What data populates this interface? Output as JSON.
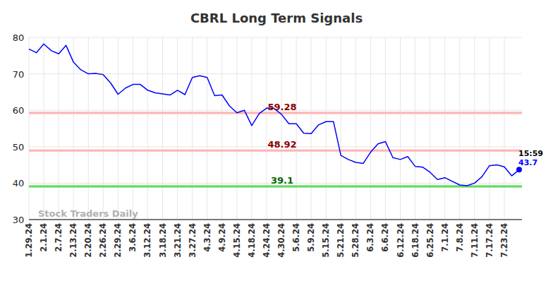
{
  "chart_data": {
    "type": "line",
    "title": "CBRL Long Term Signals",
    "categories": [
      "1.29.24",
      null,
      "2.1.24",
      null,
      "2.7.24",
      null,
      "2.13.24",
      null,
      "2.20.24",
      null,
      "2.26.24",
      null,
      "2.29.24",
      null,
      "3.6.24",
      null,
      "3.12.24",
      null,
      "3.18.24",
      null,
      "3.21.24",
      null,
      "3.27.24",
      null,
      "4.3.24",
      null,
      "4.9.24",
      null,
      "4.15.24",
      null,
      "4.18.24",
      null,
      "4.24.24",
      null,
      "4.30.24",
      null,
      "5.6.24",
      null,
      "5.9.24",
      null,
      "5.15.24",
      null,
      "5.21.24",
      null,
      "5.28.24",
      null,
      "6.3.24",
      null,
      "6.6.24",
      null,
      "6.12.24",
      null,
      "6.18.24",
      null,
      "6.25.24",
      null,
      "7.1.24",
      null,
      "7.8.24",
      null,
      "7.11.24",
      null,
      "7.17.24",
      null,
      "7.23.24",
      null,
      null
    ],
    "values": [
      76.8,
      75.8,
      78.2,
      76.4,
      75.5,
      77.8,
      73.2,
      71.1,
      70.0,
      70.1,
      69.8,
      67.5,
      64.4,
      66.1,
      67.1,
      67.1,
      65.5,
      64.8,
      64.5,
      64.2,
      65.5,
      64.3,
      69.0,
      69.5,
      69.0,
      64.0,
      64.2,
      61.2,
      59.3,
      60.0,
      55.8,
      59.1,
      60.6,
      60.5,
      58.9,
      56.3,
      56.3,
      53.7,
      53.6,
      56.0,
      56.9,
      56.9,
      47.6,
      46.5,
      45.7,
      45.4,
      48.5,
      50.8,
      51.4,
      47.0,
      46.5,
      47.3,
      44.6,
      44.4,
      43.0,
      41.0,
      41.5,
      40.5,
      39.5,
      39.3,
      40.0,
      41.8,
      44.8,
      45.0,
      44.5,
      42.0,
      43.7
    ],
    "color": "#0000ff",
    "ylim": [
      30,
      80
    ],
    "yticks": [
      30,
      40,
      50,
      60,
      70,
      80
    ],
    "grid": true,
    "levels": [
      {
        "value": 59.28,
        "label": "59.28",
        "color": "#8b0000"
      },
      {
        "value": 48.92,
        "label": "48.92",
        "color": "#8b0000"
      },
      {
        "value": 39.1,
        "label": "39.1",
        "color": "#006400"
      }
    ],
    "watermark": "Stock Traders Daily",
    "last_point": {
      "time": "15:59",
      "label": "43.7"
    }
  }
}
